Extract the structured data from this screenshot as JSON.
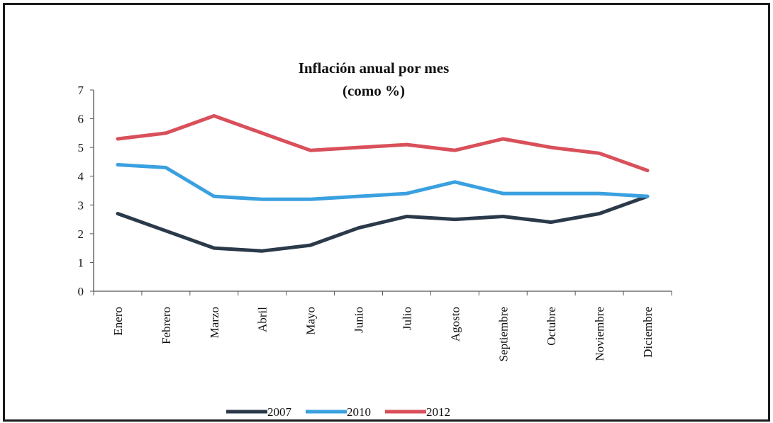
{
  "chart_data": {
    "type": "line",
    "title": "Inflación anual por mes",
    "subtitle": "(como %)",
    "xlabel": "",
    "ylabel": "",
    "categories": [
      "Enero",
      "Febrero",
      "Marzo",
      "Abril",
      "Mayo",
      "Junio",
      "Julio",
      "Agosto",
      "Septiembre",
      "Octubre",
      "Noviembre",
      "Diciembre"
    ],
    "ylim": [
      0,
      7
    ],
    "yticks": [
      "0",
      "1",
      "2",
      "3",
      "4",
      "5",
      "6",
      "7"
    ],
    "grid": false,
    "legend_position": "bottom",
    "series": [
      {
        "name": "2007",
        "color": "#2b3a4a",
        "values": [
          2.7,
          2.1,
          1.5,
          1.4,
          1.6,
          2.2,
          2.6,
          2.5,
          2.6,
          2.4,
          2.7,
          3.3
        ]
      },
      {
        "name": "2010",
        "color": "#3aa0e0",
        "values": [
          4.4,
          4.3,
          3.3,
          3.2,
          3.2,
          3.3,
          3.4,
          3.8,
          3.4,
          3.4,
          3.4,
          3.3
        ]
      },
      {
        "name": "2012",
        "color": "#d9505a",
        "values": [
          5.3,
          5.5,
          6.1,
          5.5,
          4.9,
          5.0,
          5.1,
          4.9,
          5.3,
          5.0,
          4.8,
          4.2
        ]
      }
    ]
  }
}
